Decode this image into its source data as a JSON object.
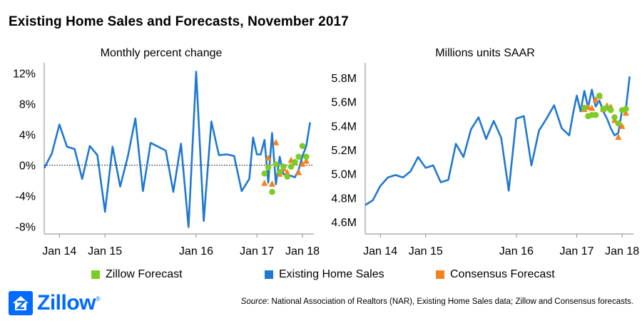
{
  "title": "Existing Home Sales and Forecasts, November 2017",
  "colors": {
    "existing": "#1f78d1",
    "zillow": "#7ccc25",
    "consensus": "#f58220",
    "axis": "#888888",
    "zero_line": "#000000"
  },
  "legend": {
    "zillow": "Zillow Forecast",
    "existing": "Existing Home Sales",
    "consensus": "Consensus Forecast"
  },
  "source": {
    "label": "Source",
    "text": ": National Association of Realtors (NAR), Existing Home Sales data; Zillow and Consensus forecasts."
  },
  "logo": {
    "text": "Zillow",
    "mark": "®"
  },
  "chart_data": [
    {
      "type": "line",
      "subtitle": "Monthly percent change",
      "x_tick_labels": [
        "Jan 14",
        "Jan 15",
        "Jan 16",
        "Jan 17",
        "Jan 18"
      ],
      "x_tick_index": [
        4,
        16,
        40,
        56,
        68
      ],
      "y_tick_labels": [
        "12%",
        "8%",
        "4%",
        "0%",
        "-4%",
        "-8%"
      ],
      "y_tick_values": [
        12,
        8,
        4,
        0,
        -4,
        -8
      ],
      "ylim": [
        -9,
        13
      ],
      "x_range": [
        0,
        71
      ],
      "zero_line": "dotted",
      "series": [
        {
          "name": "Existing Home Sales",
          "kind": "line",
          "x": [
            0,
            2,
            4,
            6,
            8,
            10,
            12,
            14,
            16,
            18,
            20,
            22,
            24,
            26,
            28,
            30,
            32,
            34,
            36,
            38,
            40,
            42,
            44,
            46,
            48,
            50,
            52,
            54,
            55,
            56,
            57,
            58,
            59,
            60,
            61,
            62,
            63,
            64,
            65,
            66,
            67,
            68,
            69,
            70
          ],
          "y": [
            -0.4,
            1.5,
            5.3,
            2.4,
            2.1,
            -1.8,
            2.5,
            1.3,
            -6.1,
            2.4,
            -2.8,
            1.1,
            6.1,
            -3.4,
            2.9,
            2.4,
            1.9,
            -3.5,
            2.8,
            -8.1,
            12.2,
            -7.3,
            5.7,
            1.3,
            1.4,
            1.2,
            -3.4,
            -1.8,
            3.6,
            1.4,
            1.4,
            3.3,
            -2.3,
            4.2,
            -2.5,
            1.1,
            -1.2,
            -1.3,
            -1.4,
            -1.6,
            -0.6,
            1.2,
            2.5,
            5.6
          ]
        },
        {
          "name": "Zillow Forecast",
          "kind": "marker-circle",
          "x": [
            58,
            59,
            60,
            61,
            62,
            63,
            64,
            65,
            66,
            67,
            68,
            69
          ],
          "y": [
            -1.1,
            -0.3,
            -3.5,
            0.1,
            -0.9,
            -0.2,
            -1.5,
            -0.2,
            0.4,
            1.1,
            2.5,
            1.1
          ]
        },
        {
          "name": "Consensus Forecast",
          "kind": "marker-triangle",
          "x": [
            58,
            59,
            60,
            61,
            62,
            63,
            64,
            65,
            66,
            67,
            68,
            69
          ],
          "y": [
            -2.3,
            1.0,
            -2.4,
            3.0,
            -1.1,
            -0.4,
            -0.9,
            0.7,
            0.4,
            -0.9,
            0.2,
            0.6
          ]
        }
      ]
    },
    {
      "type": "line",
      "subtitle": "Millions units SAAR",
      "x_tick_labels": [
        "Jan 14",
        "Jan 15",
        "Jan 16",
        "Jan 17",
        "Jan 18"
      ],
      "x_tick_index": [
        4,
        16,
        40,
        56,
        68
      ],
      "y_tick_labels": [
        "5.8M",
        "5.6M",
        "5.4M",
        "5.2M",
        "5.0M",
        "4.8M",
        "4.6M"
      ],
      "y_tick_values": [
        5.8,
        5.6,
        5.4,
        5.2,
        5.0,
        4.8,
        4.6
      ],
      "ylim": [
        4.5,
        5.9
      ],
      "x_range": [
        0,
        71
      ],
      "series": [
        {
          "name": "Existing Home Sales",
          "kind": "line",
          "x": [
            0,
            2,
            4,
            6,
            8,
            10,
            12,
            14,
            16,
            18,
            20,
            22,
            24,
            26,
            28,
            30,
            32,
            34,
            36,
            38,
            40,
            42,
            44,
            46,
            48,
            50,
            52,
            54,
            55,
            56,
            57,
            58,
            59,
            60,
            61,
            62,
            63,
            64,
            65,
            66,
            67,
            68,
            69,
            70
          ],
          "y": [
            4.74,
            4.78,
            4.9,
            4.97,
            4.99,
            4.97,
            5.02,
            5.14,
            5.05,
            5.07,
            4.93,
            4.95,
            5.25,
            5.14,
            5.37,
            5.47,
            5.29,
            5.44,
            5.3,
            4.86,
            5.46,
            5.48,
            5.07,
            5.36,
            5.46,
            5.57,
            5.38,
            5.32,
            5.5,
            5.65,
            5.52,
            5.69,
            5.55,
            5.7,
            5.56,
            5.61,
            5.52,
            5.46,
            5.38,
            5.32,
            5.34,
            5.53,
            5.54,
            5.81
          ]
        },
        {
          "name": "Zillow Forecast",
          "kind": "marker-circle",
          "x": [
            58,
            59,
            60,
            61,
            62,
            63,
            64,
            65,
            66,
            67,
            68,
            69
          ],
          "y": [
            5.55,
            5.48,
            5.49,
            5.49,
            5.65,
            5.54,
            5.55,
            5.53,
            5.47,
            5.42,
            5.53,
            5.54
          ]
        },
        {
          "name": "Consensus Forecast",
          "kind": "marker-triangle",
          "x": [
            58,
            59,
            60,
            61,
            62,
            63,
            64,
            65,
            66,
            67,
            68,
            69
          ],
          "y": [
            5.54,
            5.56,
            5.55,
            5.62,
            5.65,
            5.54,
            5.57,
            5.56,
            5.45,
            5.31,
            5.4,
            5.51
          ]
        }
      ]
    }
  ]
}
